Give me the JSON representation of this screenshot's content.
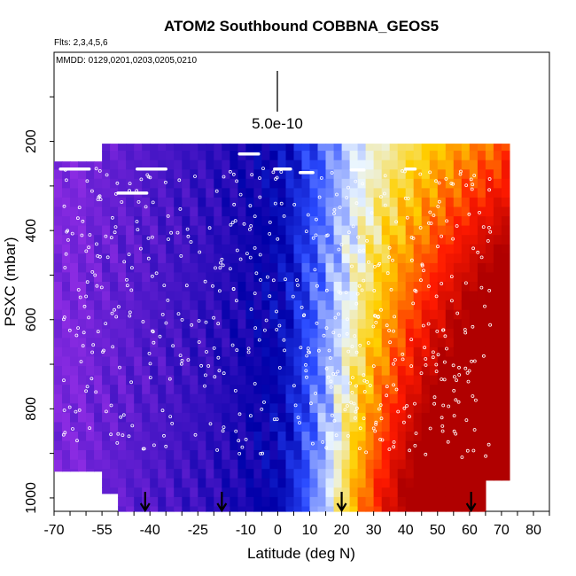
{
  "chart_data": {
    "type": "heatmap",
    "title": "ATOM2 Southbound COBBNA_GEOS5",
    "subtitle_flights": "Flts: 2,3,4,5,6",
    "subtitle_dates": "MMDD: 0129,0201,0203,0205,0210",
    "xlabel": "Latitude (deg N)",
    "ylabel": "PSXC (mbar)",
    "xlim": [
      -70,
      85
    ],
    "ylim": [
      1030,
      0
    ],
    "x_tick_labels": [
      "-70",
      "-55",
      "-40",
      "-25",
      "-10",
      "0",
      "10",
      "20",
      "30",
      "40",
      "50",
      "60",
      "70",
      "80"
    ],
    "y_tick_labels": [
      "200",
      "400",
      "600",
      "800",
      "1000"
    ],
    "scale_bar_label": "5.0e-10",
    "profile_arrow_latitudes": [
      -41.5,
      -17.5,
      20,
      60.5
    ],
    "grid": false,
    "colormap": [
      "#8a2be2",
      "#0000a8",
      "#2a4bff",
      "#eaf6ff",
      "#ffd000",
      "#ff1a00",
      "#b00000"
    ]
  }
}
